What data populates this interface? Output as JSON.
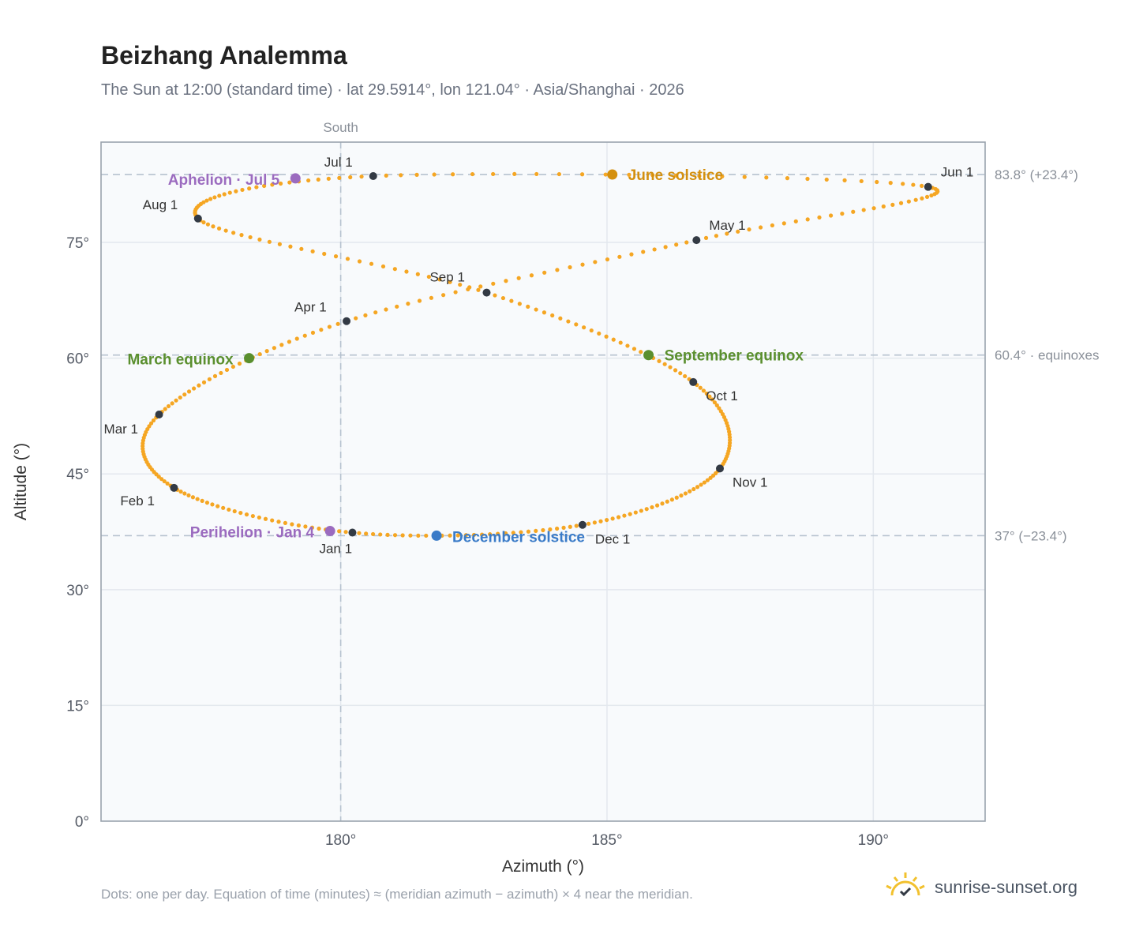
{
  "header": {
    "title": "Beizhang Analemma",
    "subtitle": "The Sun at 12:00 (standard time) · lat 29.5914°, lon 121.04° · Asia/Shanghai · 2026"
  },
  "footer": {
    "note": "Dots: one per day. Equation of time (minutes) ≈ (meridian azimuth − azimuth) × 4 near the meridian.",
    "brand": "sunrise-sunset.org",
    "brand_icon": "sun-logo-icon"
  },
  "colors": {
    "path": "#f5a623",
    "month": "#333a44",
    "june": "#d4900f",
    "december": "#3a7bc8",
    "equinox": "#5a8f2e",
    "apsis": "#9b6bbf",
    "plot_bg": "#f8fafc",
    "grid": "#e3e8ee",
    "frame": "#9aa3ad"
  },
  "chart_data": {
    "type": "scatter",
    "title": "Beizhang Analemma",
    "xlabel": "Azimuth (°)",
    "ylabel": "Altitude (°)",
    "xlim": [
      175.5,
      192.1
    ],
    "ylim": [
      0,
      88
    ],
    "x_ticks": [
      180,
      185,
      190
    ],
    "x_tick_labels": [
      "180°",
      "185°",
      "190°"
    ],
    "y_ticks": [
      0,
      15,
      30,
      45,
      60,
      75
    ],
    "y_tick_labels": [
      "0°",
      "15°",
      "30°",
      "45°",
      "60°",
      "75°"
    ],
    "grid": true,
    "meridian": {
      "x": 180,
      "label": "South"
    },
    "reference_lines": [
      {
        "y": 83.8,
        "label": "83.8° (+23.4°)"
      },
      {
        "y": 60.4,
        "label": "60.4° · equinoxes"
      },
      {
        "y": 37.0,
        "label": "37° (−23.4°)"
      }
    ],
    "series": [
      {
        "points_per": "day",
        "month_nodes": [
          {
            "label": "Jan 1",
            "x": 180.22,
            "y": 37.4
          },
          {
            "label": "Feb 1",
            "x": 176.87,
            "y": 43.2
          },
          {
            "label": "Mar 1",
            "x": 176.59,
            "y": 52.7
          },
          {
            "label": "Apr 1",
            "x": 180.11,
            "y": 64.8
          },
          {
            "label": "May 1",
            "x": 186.68,
            "y": 75.3
          },
          {
            "label": "Jun 1",
            "x": 191.03,
            "y": 82.2
          },
          {
            "label": "Jul 1",
            "x": 180.61,
            "y": 83.6
          },
          {
            "label": "Aug 1",
            "x": 177.32,
            "y": 78.1
          },
          {
            "label": "Sep 1",
            "x": 182.74,
            "y": 68.5
          },
          {
            "label": "Oct 1",
            "x": 186.62,
            "y": 56.9
          },
          {
            "label": "Nov 1",
            "x": 187.12,
            "y": 45.7
          },
          {
            "label": "Dec 1",
            "x": 184.54,
            "y": 38.4
          },
          {
            "label": "Jan 1 (next)",
            "x": 180.22,
            "y": 37.4
          }
        ]
      }
    ],
    "events": [
      {
        "label": "June solstice",
        "x": 185.1,
        "y": 83.8,
        "color_key": "june"
      },
      {
        "label": "December solstice",
        "x": 181.8,
        "y": 37.0,
        "color_key": "december"
      },
      {
        "label": "March equinox",
        "x": 178.28,
        "y": 60.0,
        "color_key": "equinox"
      },
      {
        "label": "September equinox",
        "x": 185.78,
        "y": 60.4,
        "color_key": "equinox"
      },
      {
        "label": "Aphelion · Jul 5",
        "x": 179.15,
        "y": 83.3,
        "color_key": "apsis"
      },
      {
        "label": "Perihelion · Jan 4",
        "x": 179.8,
        "y": 37.6,
        "color_key": "apsis"
      }
    ]
  }
}
